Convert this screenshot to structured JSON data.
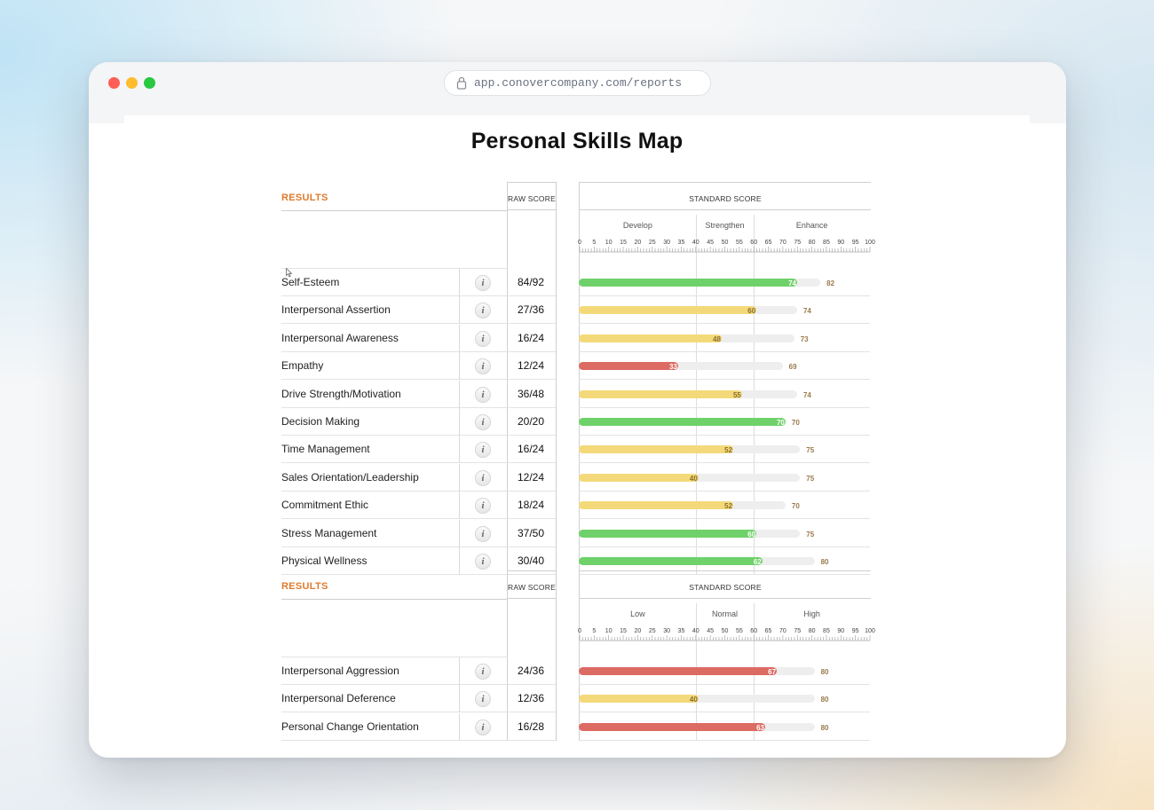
{
  "browser": {
    "url": "app.conovercompany.com/reports"
  },
  "page": {
    "title": "Personal Skills Map"
  },
  "colors": {
    "green": "#6fd16a",
    "yellow": "#f4d97a",
    "red": "#dc6b63",
    "results_header": "#e07a2c"
  },
  "sections": [
    {
      "results_label": "RESULTS",
      "raw_score_label": "RAW SCORE",
      "standard_score_label": "STANDARD SCORE",
      "zones": [
        "Develop",
        "Strengthen",
        "Enhance"
      ],
      "ticks": [
        "0",
        "5",
        "10",
        "15",
        "20",
        "25",
        "30",
        "35",
        "40",
        "45",
        "50",
        "55",
        "60",
        "65",
        "70",
        "75",
        "80",
        "85",
        "90",
        "95",
        "100"
      ],
      "rows": [
        {
          "label": "Self-Esteem",
          "raw": "84/92",
          "score": 74,
          "target": 82,
          "color": "green"
        },
        {
          "label": "Interpersonal Assertion",
          "raw": "27/36",
          "score": 60,
          "target": 74,
          "color": "yellow"
        },
        {
          "label": "Interpersonal Awareness",
          "raw": "16/24",
          "score": 48,
          "target": 73,
          "color": "yellow"
        },
        {
          "label": "Empathy",
          "raw": "12/24",
          "score": 33,
          "target": 69,
          "color": "red"
        },
        {
          "label": "Drive Strength/Motivation",
          "raw": "36/48",
          "score": 55,
          "target": 74,
          "color": "yellow"
        },
        {
          "label": "Decision Making",
          "raw": "20/20",
          "score": 70,
          "target": 70,
          "color": "green"
        },
        {
          "label": "Time Management",
          "raw": "16/24",
          "score": 52,
          "target": 75,
          "color": "yellow"
        },
        {
          "label": "Sales Orientation/Leadership",
          "raw": "12/24",
          "score": 40,
          "target": 75,
          "color": "yellow"
        },
        {
          "label": "Commitment Ethic",
          "raw": "18/24",
          "score": 52,
          "target": 70,
          "color": "yellow"
        },
        {
          "label": "Stress Management",
          "raw": "37/50",
          "score": 60,
          "target": 75,
          "color": "green"
        },
        {
          "label": "Physical Wellness",
          "raw": "30/40",
          "score": 62,
          "target": 80,
          "color": "green"
        }
      ]
    },
    {
      "results_label": "RESULTS",
      "raw_score_label": "RAW SCORE",
      "standard_score_label": "STANDARD SCORE",
      "zones": [
        "Low",
        "Normal",
        "High"
      ],
      "ticks": [
        "0",
        "5",
        "10",
        "15",
        "20",
        "25",
        "30",
        "35",
        "40",
        "45",
        "50",
        "55",
        "60",
        "65",
        "70",
        "75",
        "80",
        "85",
        "90",
        "95",
        "100"
      ],
      "rows": [
        {
          "label": "Interpersonal Aggression",
          "raw": "24/36",
          "score": 67,
          "target": 80,
          "color": "red"
        },
        {
          "label": "Interpersonal Deference",
          "raw": "12/36",
          "score": 40,
          "target": 80,
          "color": "yellow"
        },
        {
          "label": "Personal Change Orientation",
          "raw": "16/28",
          "score": 63,
          "target": 80,
          "color": "red"
        }
      ]
    }
  ]
}
